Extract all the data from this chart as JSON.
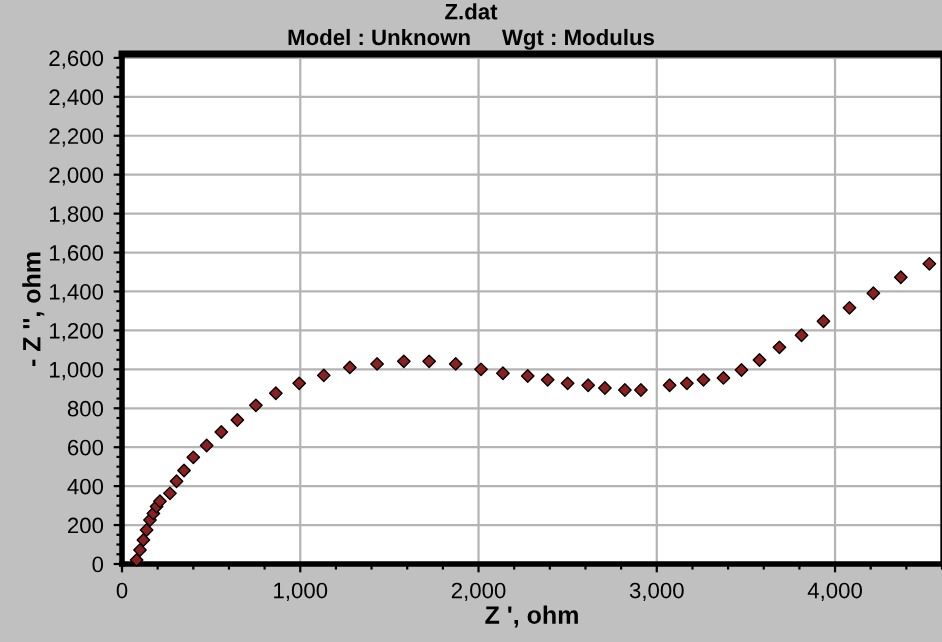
{
  "chart_data": {
    "type": "scatter",
    "title": "Z.dat",
    "subtitle": "Model : Unknown     Wgt : Modulus",
    "xlabel": "Z ', ohm",
    "ylabel": "- Z '', ohm",
    "x": [
      82,
      101,
      120,
      138,
      157,
      176,
      194,
      213,
      269,
      306,
      348,
      400,
      475,
      557,
      647,
      751,
      863,
      994,
      1132,
      1278,
      1431,
      1581,
      1723,
      1872,
      2014,
      2137,
      2276,
      2388,
      2500,
      2615,
      2709,
      2821,
      2911,
      3072,
      3169,
      3262,
      3374,
      3475,
      3576,
      3688,
      3812,
      3935,
      4081,
      4215,
      4369,
      4529
    ],
    "values": [
      21,
      72,
      123,
      175,
      226,
      260,
      295,
      322,
      363,
      425,
      480,
      548,
      609,
      678,
      740,
      815,
      877,
      928,
      969,
      1010,
      1028,
      1041,
      1041,
      1028,
      1000,
      980,
      966,
      946,
      928,
      918,
      904,
      894,
      894,
      918,
      928,
      946,
      956,
      997,
      1048,
      1113,
      1175,
      1247,
      1316,
      1391,
      1473,
      1542
    ],
    "color": "#8b2020",
    "marker": "diamond",
    "grid": true,
    "xlim": [
      0,
      4600
    ],
    "ylim": [
      0,
      2620
    ],
    "xticks": [
      0,
      {
        "value": 1000,
        "label": "1,000"
      },
      {
        "value": 2000,
        "label": "2,000"
      },
      {
        "value": 3000,
        "label": "3,000"
      },
      {
        "value": 4000,
        "label": "4,000"
      }
    ],
    "yticks": [
      0,
      200,
      400,
      600,
      800,
      {
        "value": 1000,
        "label": "1,000"
      },
      {
        "value": 1200,
        "label": "1,200"
      },
      {
        "value": 1400,
        "label": "1,400"
      },
      {
        "value": 1600,
        "label": "1,600"
      },
      {
        "value": 1800,
        "label": "1,800"
      },
      {
        "value": 2000,
        "label": "2,000"
      },
      {
        "value": 2200,
        "label": "2,200"
      },
      {
        "value": 2400,
        "label": "2,400"
      },
      {
        "value": 2600,
        "label": "2,600"
      }
    ]
  }
}
